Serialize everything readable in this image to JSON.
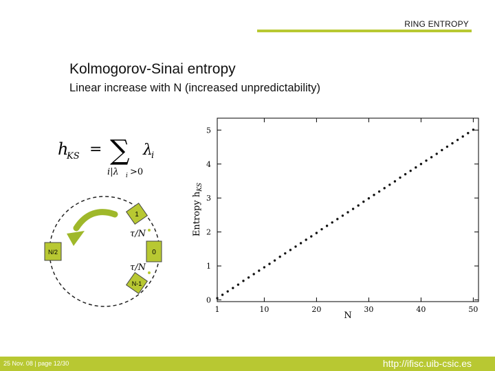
{
  "header": {
    "label": "RING ENTROPY"
  },
  "slide": {
    "title": "Kolmogorov-Sinai entropy",
    "subtitle": "Linear increase with N (increased unpredictability)"
  },
  "formula": {
    "lhs": "h",
    "lhs_sub": "KS",
    "equals": "=",
    "sum": "∑",
    "term": "λ",
    "term_sub": "i",
    "condition": "i|λ",
    "condition_sub": "i",
    "condition_tail": ">0"
  },
  "ring": {
    "nodes": {
      "top": "1",
      "right": "0",
      "left": "N/2",
      "bottom": "N-1"
    },
    "delay_labels": [
      "τ/N",
      "τ/N"
    ]
  },
  "chart_data": {
    "type": "scatter",
    "xlabel": "N",
    "ylabel": "Entropy h",
    "ylabel_sub": "KS",
    "xlim": [
      1,
      51
    ],
    "ylim": [
      -0.05,
      5.35
    ],
    "x_ticks": [
      1,
      10,
      20,
      30,
      40,
      50
    ],
    "y_ticks": [
      0,
      1,
      2,
      3,
      4,
      5
    ],
    "x": [
      1,
      2,
      3,
      4,
      5,
      6,
      7,
      8,
      9,
      10,
      11,
      12,
      13,
      14,
      15,
      16,
      17,
      18,
      19,
      20,
      21,
      22,
      23,
      24,
      25,
      26,
      27,
      28,
      29,
      30,
      31,
      32,
      33,
      34,
      35,
      36,
      37,
      38,
      39,
      40,
      41,
      42,
      43,
      44,
      45,
      46,
      47,
      48,
      49,
      50
    ],
    "y": [
      0.05,
      0.15,
      0.25,
      0.35,
      0.45,
      0.56,
      0.66,
      0.76,
      0.86,
      0.96,
      1.06,
      1.16,
      1.27,
      1.37,
      1.47,
      1.57,
      1.67,
      1.77,
      1.87,
      1.97,
      2.08,
      2.18,
      2.28,
      2.38,
      2.48,
      2.58,
      2.68,
      2.78,
      2.89,
      2.99,
      3.09,
      3.19,
      3.29,
      3.39,
      3.49,
      3.6,
      3.7,
      3.8,
      3.9,
      4.0,
      4.1,
      4.2,
      4.3,
      4.41,
      4.51,
      4.61,
      4.71,
      4.81,
      4.91,
      5.01
    ]
  },
  "footer": {
    "left": "25 Nov. 08 | page 12/30",
    "right": "http://ifisc.uib-csic.es"
  }
}
